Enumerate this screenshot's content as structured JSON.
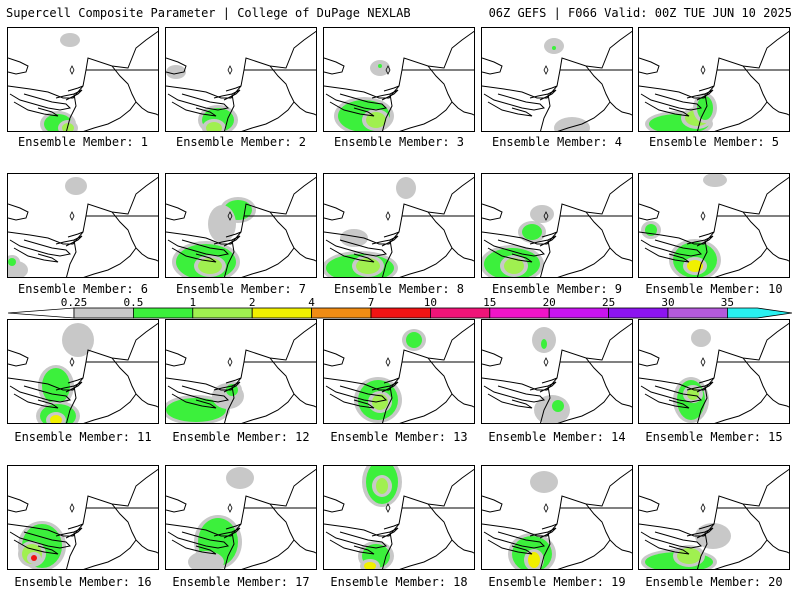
{
  "header": {
    "left": "Supercell Composite Parameter | College of DuPage NEXLAB",
    "right": "06Z GEFS | F066 Valid: 00Z TUE JUN 10 2025"
  },
  "member_label_prefix": "Ensemble Member:",
  "members": [
    1,
    2,
    3,
    4,
    5,
    6,
    7,
    8,
    9,
    10,
    11,
    12,
    13,
    14,
    15,
    16,
    17,
    18,
    19,
    20
  ],
  "colorbar": {
    "thresholds": [
      "0.25",
      "0.5",
      "1",
      "2",
      "4",
      "7",
      "10",
      "15",
      "20",
      "25",
      "30",
      "35"
    ],
    "colors": [
      "#c8c8c8",
      "#3cf03c",
      "#a0f050",
      "#f0f000",
      "#f08c14",
      "#f01414",
      "#f01478",
      "#f014c8",
      "#c814f0",
      "#8c14f0",
      "#b45adc",
      "#28f0f0"
    ]
  }
}
